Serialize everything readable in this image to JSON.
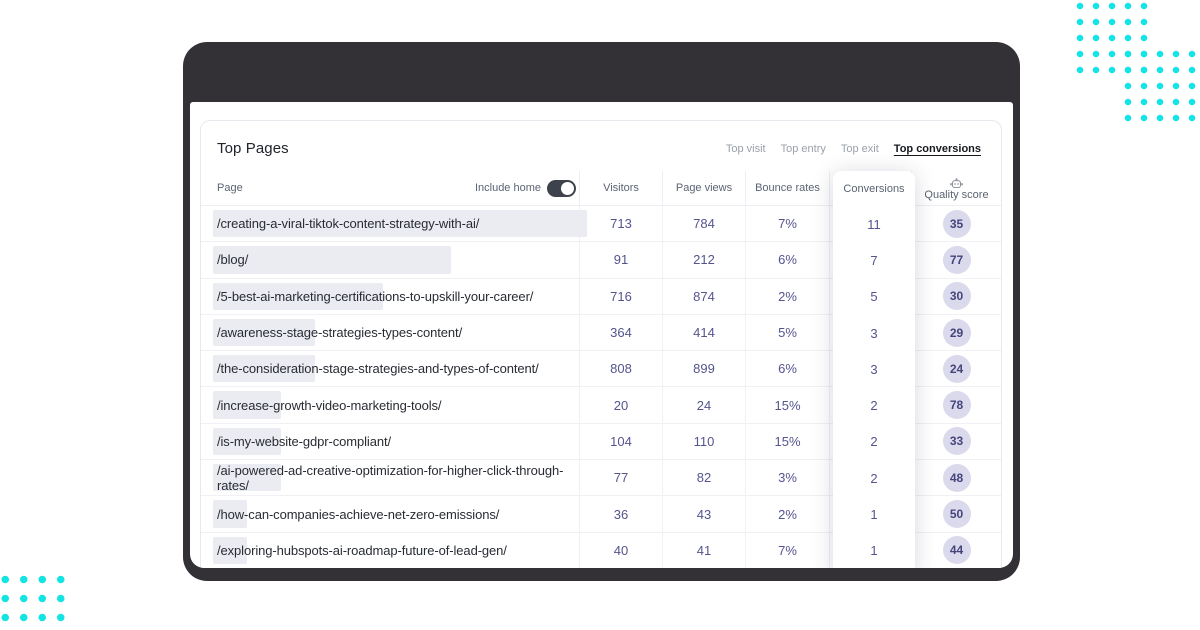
{
  "colors": {
    "accent": "#12e3e3",
    "badge-bg": "#dbd9ec",
    "badge-fg": "#45457c",
    "number": "#54548e",
    "chrome": "#333136"
  },
  "window": {
    "traffic_lights": [
      "close",
      "minimize",
      "maximize"
    ]
  },
  "panel": {
    "title": "Top Pages",
    "tabs": [
      {
        "label": "Top visit",
        "active": false
      },
      {
        "label": "Top entry",
        "active": false
      },
      {
        "label": "Top exit",
        "active": false
      },
      {
        "label": "Top conversions",
        "active": true
      }
    ],
    "include_home_label": "Include home",
    "include_home_on": true
  },
  "table": {
    "columns": [
      "Page",
      "Visitors",
      "Page views",
      "Bounce rates",
      "Conversions",
      "Quality score"
    ],
    "rows": [
      {
        "page": "/creating-a-viral-tiktok-content-strategy-with-ai/",
        "visitors": 713,
        "page_views": 784,
        "bounce_rate": "7%",
        "conversions": 11,
        "quality_score": 35
      },
      {
        "page": "/blog/",
        "visitors": 91,
        "page_views": 212,
        "bounce_rate": "6%",
        "conversions": 7,
        "quality_score": 77
      },
      {
        "page": "/5-best-ai-marketing-certifications-to-upskill-your-career/",
        "visitors": 716,
        "page_views": 874,
        "bounce_rate": "2%",
        "conversions": 5,
        "quality_score": 30
      },
      {
        "page": "/awareness-stage-strategies-types-content/",
        "visitors": 364,
        "page_views": 414,
        "bounce_rate": "5%",
        "conversions": 3,
        "quality_score": 29
      },
      {
        "page": "/the-consideration-stage-strategies-and-types-of-content/",
        "visitors": 808,
        "page_views": 899,
        "bounce_rate": "6%",
        "conversions": 3,
        "quality_score": 24
      },
      {
        "page": "/increase-growth-video-marketing-tools/",
        "visitors": 20,
        "page_views": 24,
        "bounce_rate": "15%",
        "conversions": 2,
        "quality_score": 78
      },
      {
        "page": "/is-my-website-gdpr-compliant/",
        "visitors": 104,
        "page_views": 110,
        "bounce_rate": "15%",
        "conversions": 2,
        "quality_score": 33
      },
      {
        "page": "/ai-powered-ad-creative-optimization-for-higher-click-through-rates/",
        "visitors": 77,
        "page_views": 82,
        "bounce_rate": "3%",
        "conversions": 2,
        "quality_score": 48
      },
      {
        "page": "/how-can-companies-achieve-net-zero-emissions/",
        "visitors": 36,
        "page_views": 43,
        "bounce_rate": "2%",
        "conversions": 1,
        "quality_score": 50
      },
      {
        "page": "/exploring-hubspots-ai-roadmap-future-of-lead-gen/",
        "visitors": 40,
        "page_views": 41,
        "bounce_rate": "7%",
        "conversions": 1,
        "quality_score": 44
      }
    ]
  }
}
